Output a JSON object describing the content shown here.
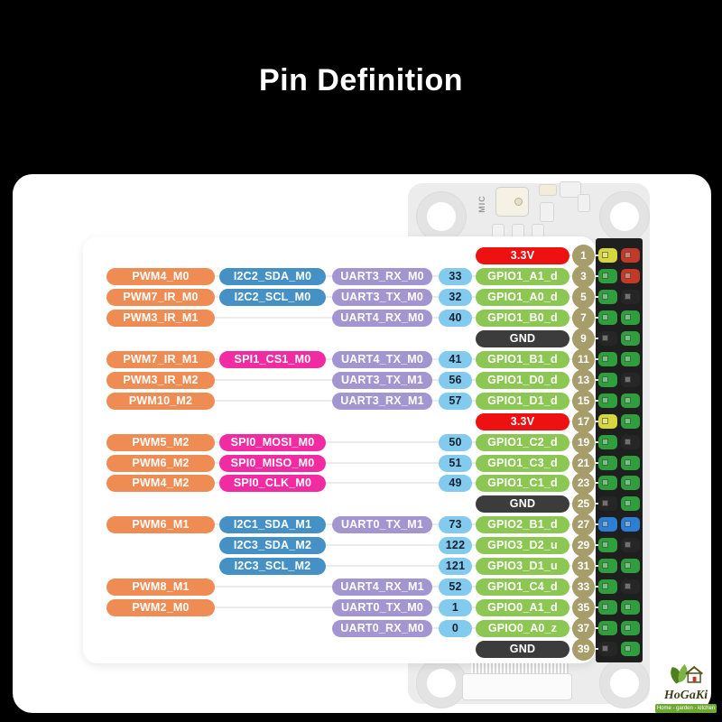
{
  "title": "Pin Definition",
  "colors": {
    "pwm": "#EE8C54",
    "i2c": "#4590C4",
    "spi": "#F12CA3",
    "uart": "#A295D0",
    "num_bg": "#82CBEF",
    "num_text": "#16222E",
    "gpio": "#8CC653",
    "power": "#EE1111",
    "gnd": "#3C3C3C",
    "pin_circle": "#A69D6B",
    "header_pins": {
      "green": "#2F9F3E",
      "red": "#C23A27",
      "yellow": "#D6D73E",
      "black": "#262626",
      "blue": "#2C7FD4"
    }
  },
  "board": {
    "mic_label": "MIC"
  },
  "logo": {
    "name": "HoGaKi",
    "tagline": "Home - garden - kitchen"
  },
  "rows": [
    {
      "pin": 1,
      "power": "3.3V",
      "power_type": "3v3",
      "hdr": [
        "yellow",
        "red"
      ]
    },
    {
      "pin": 3,
      "pwm": "PWM4_M0",
      "bus": "I2C2_SDA_M0",
      "bus_type": "i2c",
      "uart": "UART3_RX_M0",
      "num": "33",
      "gpio": "GPIO1_A1_d",
      "hdr": [
        "green",
        "red"
      ]
    },
    {
      "pin": 5,
      "pwm": "PWM7_IR_M0",
      "bus": "I2C2_SCL_M0",
      "bus_type": "i2c",
      "uart": "UART3_TX_M0",
      "num": "32",
      "gpio": "GPIO1_A0_d",
      "hdr": [
        "green",
        "black"
      ]
    },
    {
      "pin": 7,
      "pwm": "PWM3_IR_M1",
      "uart": "UART4_RX_M0",
      "num": "40",
      "gpio": "GPIO1_B0_d",
      "hdr": [
        "green",
        "green"
      ]
    },
    {
      "pin": 9,
      "power": "GND",
      "power_type": "gnd",
      "hdr": [
        "black",
        "green"
      ]
    },
    {
      "pin": 11,
      "pwm": "PWM7_IR_M1",
      "bus": "SPI1_CS1_M0",
      "bus_type": "spi",
      "uart": "UART4_TX_M0",
      "num": "41",
      "gpio": "GPIO1_B1_d",
      "hdr": [
        "green",
        "green"
      ]
    },
    {
      "pin": 13,
      "pwm": "PWM3_IR_M2",
      "uart": "UART3_TX_M1",
      "num": "56",
      "gpio": "GPIO1_D0_d",
      "hdr": [
        "green",
        "black"
      ]
    },
    {
      "pin": 15,
      "pwm": "PWM10_M2",
      "uart": "UART3_RX_M1",
      "num": "57",
      "gpio": "GPIO1_D1_d",
      "hdr": [
        "green",
        "green"
      ]
    },
    {
      "pin": 17,
      "power": "3.3V",
      "power_type": "3v3",
      "hdr": [
        "yellow",
        "green"
      ]
    },
    {
      "pin": 19,
      "pwm": "PWM5_M2",
      "bus": "SPI0_MOSI_M0",
      "bus_type": "spi",
      "num": "50",
      "gpio": "GPIO1_C2_d",
      "hdr": [
        "green",
        "black"
      ]
    },
    {
      "pin": 21,
      "pwm": "PWM6_M2",
      "bus": "SPI0_MISO_M0",
      "bus_type": "spi",
      "num": "51",
      "gpio": "GPIO1_C3_d",
      "hdr": [
        "green",
        "green"
      ]
    },
    {
      "pin": 23,
      "pwm": "PWM4_M2",
      "bus": "SPI0_CLK_M0",
      "bus_type": "spi",
      "num": "49",
      "gpio": "GPIO1_C1_d",
      "hdr": [
        "green",
        "green"
      ]
    },
    {
      "pin": 25,
      "power": "GND",
      "power_type": "gnd",
      "hdr": [
        "black",
        "green"
      ]
    },
    {
      "pin": 27,
      "pwm": "PWM6_M1",
      "bus": "I2C1_SDA_M1",
      "bus_type": "i2c",
      "uart": "UART0_TX_M1",
      "num": "73",
      "gpio": "GPIO2_B1_d",
      "hdr": [
        "blue",
        "blue"
      ]
    },
    {
      "pin": 29,
      "bus": "I2C3_SDA_M2",
      "bus_type": "i2c",
      "num": "122",
      "gpio": "GPIO3_D2_u",
      "hdr": [
        "green",
        "black"
      ]
    },
    {
      "pin": 31,
      "bus": "I2C3_SCL_M2",
      "bus_type": "i2c",
      "num": "121",
      "gpio": "GPIO3_D1_u",
      "hdr": [
        "green",
        "green"
      ]
    },
    {
      "pin": 33,
      "pwm": "PWM8_M1",
      "uart": "UART4_RX_M1",
      "num": "52",
      "gpio": "GPIO1_C4_d",
      "hdr": [
        "green",
        "black"
      ]
    },
    {
      "pin": 35,
      "pwm": "PWM2_M0",
      "uart": "UART0_TX_M0",
      "num": "1",
      "gpio": "GPIO0_A1_d",
      "hdr": [
        "green",
        "green"
      ]
    },
    {
      "pin": 37,
      "uart": "UART0_RX_M0",
      "num": "0",
      "gpio": "GPIO0_A0_z",
      "hdr": [
        "green",
        "green"
      ]
    },
    {
      "pin": 39,
      "power": "GND",
      "power_type": "gnd",
      "hdr": [
        "black",
        "green"
      ]
    }
  ]
}
